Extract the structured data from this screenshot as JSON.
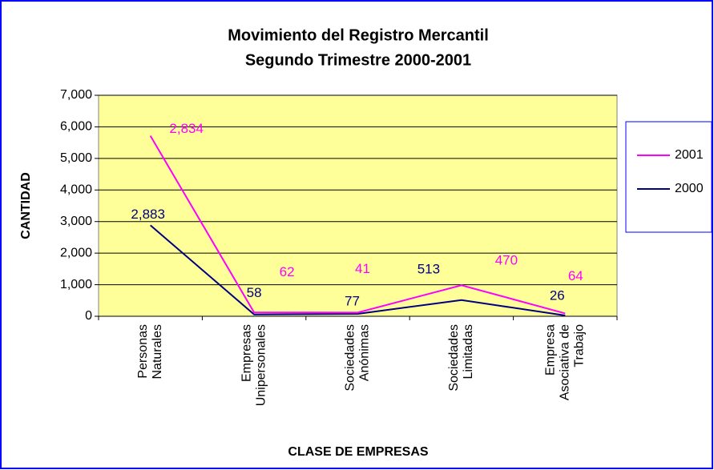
{
  "chart_data": {
    "type": "stacked-line",
    "title": "Movimiento del Registro Mercantil",
    "subtitle": "Segundo Trimestre 2000-2001",
    "x_label": "CLASE DE EMPRESAS",
    "y_label": "CANTIDAD",
    "categories": [
      [
        "Personas",
        "Naturales"
      ],
      [
        "Empresas",
        "Unipersonales"
      ],
      [
        "Sociedades",
        "Anónimas"
      ],
      [
        "Sociedades",
        "Limitadas"
      ],
      [
        "Empresa",
        "Asociativa de",
        "Trabajo"
      ]
    ],
    "series": [
      {
        "name": "2000",
        "color": "#000080",
        "values": [
          2883,
          58,
          77,
          513,
          26
        ],
        "value_labels": [
          "2,883",
          "58",
          "77",
          "513",
          "26"
        ]
      },
      {
        "name": "2001",
        "color": "#ff00ff",
        "values": [
          2834,
          62,
          41,
          470,
          64
        ],
        "value_labels": [
          "2,834",
          "62",
          "41",
          "470",
          "64"
        ]
      }
    ],
    "ylim": [
      0,
      7000
    ],
    "yticks": [
      0,
      {
        "value": 1000,
        "label": "1,000"
      },
      {
        "value": 2000,
        "label": "2,000"
      },
      {
        "value": 3000,
        "label": "3,000"
      },
      {
        "value": 4000,
        "label": "4,000"
      },
      {
        "value": 5000,
        "label": "5,000"
      },
      {
        "value": 6000,
        "label": "6,000"
      },
      {
        "value": 7000,
        "label": "7,000"
      }
    ],
    "grid": true,
    "plot_background": "#ffff99",
    "legend": "right"
  }
}
